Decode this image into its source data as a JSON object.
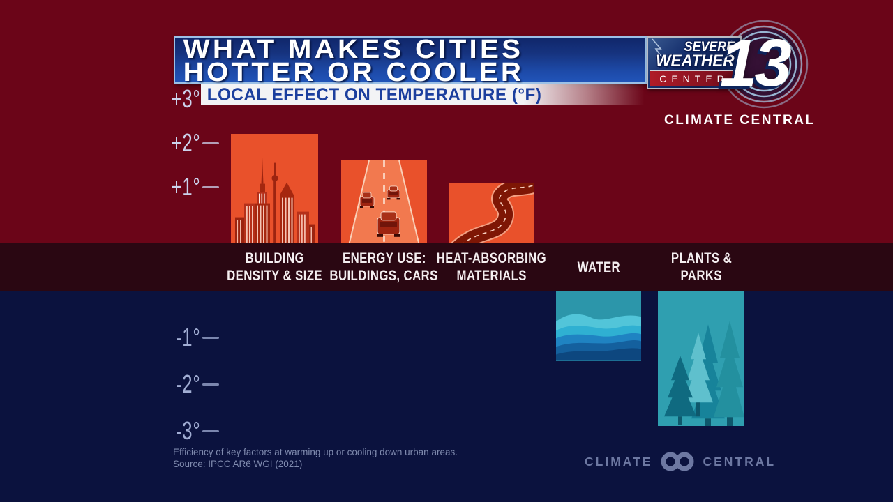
{
  "header": {
    "title_line1": "WHAT MAKES CITIES",
    "title_line2": "HOTTER OR COOLER",
    "subtitle": "LOCAL EFFECT ON TEMPERATURE (°F)"
  },
  "station_logo": {
    "line1": "SEVERE",
    "line2": "WEATHER",
    "line3": "CENTER",
    "number": "13"
  },
  "brand_top": "CLIMATE CENTRAL",
  "chart_data": {
    "type": "bar",
    "title": "WHAT MAKES CITIES HOTTER OR COOLER",
    "subtitle": "LOCAL EFFECT ON TEMPERATURE (°F)",
    "ylabel": "Local effect on temperature (°F)",
    "ylim": [
      -3.5,
      3.5
    ],
    "grid": false,
    "categories": [
      "BUILDING DENSITY & SIZE",
      "ENERGY USE: BUILDINGS, CARS",
      "HEAT-ABSORBING MATERIALS",
      "WATER",
      "PLANTS & PARKS"
    ],
    "values": [
      2.2,
      1.6,
      1.1,
      -1.5,
      -2.9
    ],
    "bars": [
      {
        "label_line1": "BUILDING",
        "label_line2": "DENSITY & SIZE",
        "value": 2.2,
        "icon": "city-skyline-icon"
      },
      {
        "label_line1": "ENERGY USE:",
        "label_line2": "BUILDINGS, CARS",
        "value": 1.6,
        "icon": "highway-cars-icon"
      },
      {
        "label_line1": "HEAT-ABSORBING",
        "label_line2": "MATERIALS",
        "value": 1.1,
        "icon": "winding-road-icon"
      },
      {
        "label_line1": "WATER",
        "label_line2": "",
        "value": -1.5,
        "icon": "water-waves-icon"
      },
      {
        "label_line1": "PLANTS &",
        "label_line2": "PARKS",
        "value": -2.9,
        "icon": "pine-trees-icon"
      }
    ],
    "axis_ticks": [
      {
        "label": "+3°",
        "value": 3
      },
      {
        "label": "+2°",
        "value": 2
      },
      {
        "label": "+1°",
        "value": 1
      },
      {
        "label": "-1°",
        "value": -1
      },
      {
        "label": "-2°",
        "value": -2
      },
      {
        "label": "-3°",
        "value": -3
      }
    ]
  },
  "footer": {
    "caption_line1": "Efficiency of key factors at warming up or cooling down urban areas.",
    "caption_line2": "Source: IPCC AR6 WGI (2021)",
    "logo_word1": "CLIMATE",
    "logo_word2": "CENTRAL"
  },
  "colors": {
    "bg_top": "#6b0518",
    "bg_bottom": "#0b123e",
    "band": "#2a0712",
    "hot_bar": "#e9512b",
    "cool_bar": "#2c96aa",
    "title_bar_blue": "#1d4aa8",
    "subtitle_text_blue": "#1c3f9e",
    "tick_positive": "#ccd3ec",
    "tick_negative": "#a2aed4"
  }
}
